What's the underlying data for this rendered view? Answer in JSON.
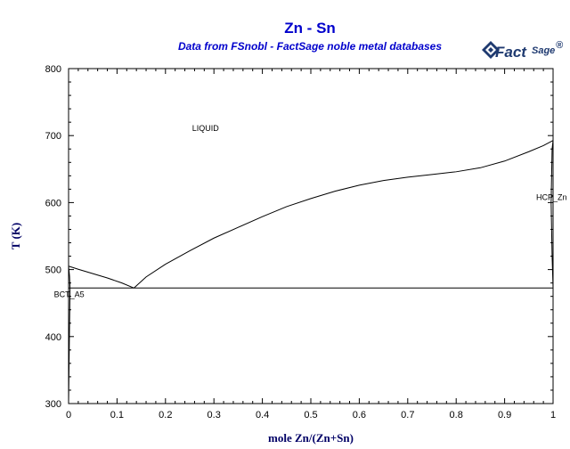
{
  "chart_data": {
    "type": "line",
    "title": "Zn - Sn",
    "subtitle": "Data from FSnobl - FactSage noble metal databases",
    "xlabel": "mole Zn/(Zn+Sn)",
    "ylabel": "T (K)",
    "xlim": [
      0,
      1
    ],
    "ylim": [
      300,
      800
    ],
    "x_ticks": [
      "0",
      "0.1",
      "0.2",
      "0.3",
      "0.4",
      "0.5",
      "0.6",
      "0.7",
      "0.8",
      "0.9",
      "1"
    ],
    "y_ticks": [
      "300",
      "400",
      "500",
      "600",
      "700",
      "800"
    ],
    "grid": false,
    "series": [
      {
        "values": [
          [
            0.0,
            505.1
          ],
          [
            0.02,
            500.5
          ],
          [
            0.05,
            494.0
          ],
          [
            0.08,
            487.5
          ],
          [
            0.11,
            480.0
          ],
          [
            0.135,
            472.5
          ]
        ]
      },
      {
        "values": [
          [
            0.135,
            472.5
          ],
          [
            0.16,
            489.0
          ],
          [
            0.2,
            508.0
          ],
          [
            0.25,
            528.0
          ],
          [
            0.3,
            547.0
          ],
          [
            0.35,
            563.0
          ],
          [
            0.4,
            579.0
          ],
          [
            0.45,
            594.0
          ],
          [
            0.5,
            606.0
          ],
          [
            0.55,
            617.0
          ],
          [
            0.6,
            626.0
          ],
          [
            0.65,
            633.0
          ],
          [
            0.7,
            638.0
          ],
          [
            0.75,
            642.0
          ],
          [
            0.8,
            646.0
          ],
          [
            0.85,
            652.0
          ],
          [
            0.9,
            662.0
          ],
          [
            0.95,
            676.0
          ],
          [
            0.98,
            685.0
          ],
          [
            1.0,
            692.7
          ]
        ]
      },
      {
        "values": [
          [
            0.0,
            472.5
          ],
          [
            1.0,
            472.5
          ]
        ]
      },
      {
        "values": [
          [
            0.0,
            300.0
          ],
          [
            0.001,
            360.0
          ],
          [
            0.002,
            420.0
          ],
          [
            0.003,
            472.5
          ],
          [
            0.002,
            490.0
          ],
          [
            0.0,
            505.1
          ]
        ]
      },
      {
        "values": [
          [
            1.0,
            692.7
          ],
          [
            0.998,
            680.0
          ],
          [
            0.997,
            640.0
          ],
          [
            0.996,
            600.0
          ],
          [
            0.997,
            560.0
          ],
          [
            0.998,
            520.0
          ],
          [
            1.0,
            472.5
          ]
        ]
      }
    ],
    "annotations": [
      {
        "text": "LIQUID",
        "x": 0.255,
        "y": 707
      },
      {
        "text": "HCP_Zn",
        "x": 0.965,
        "y": 604
      },
      {
        "text": "BCT_A5",
        "x": -0.03,
        "y": 459
      }
    ]
  },
  "logo": {
    "brand": "Fact",
    "brand_suffix": "Sage",
    "mark": "®",
    "icon": "factsage-logo-icon"
  }
}
